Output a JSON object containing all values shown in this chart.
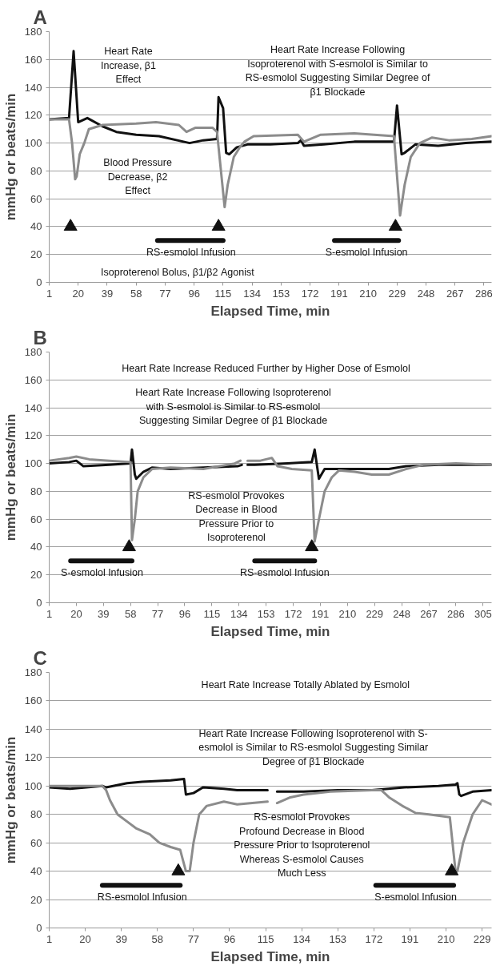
{
  "chart_data": [
    {
      "type": "line",
      "title": "A",
      "xlabel": "Elapsed Time, min",
      "ylabel": "mmHg or beats/min",
      "xlim": [
        1,
        291
      ],
      "ylim": [
        0,
        180
      ],
      "xticks": [
        1,
        20,
        39,
        58,
        77,
        96,
        115,
        134,
        153,
        172,
        191,
        210,
        229,
        248,
        267,
        286
      ],
      "yticks": [
        0,
        20,
        40,
        60,
        80,
        100,
        120,
        140,
        160,
        180
      ],
      "grid": "y",
      "series": [
        {
          "type": "line",
          "color": "#111111",
          "x": [
            1,
            14,
            17,
            20,
            26,
            36,
            45,
            58,
            73,
            89,
            93,
            102,
            111,
            112,
            115,
            117,
            119,
            124,
            131,
            146,
            164,
            166,
            168,
            181,
            201,
            227,
            229,
            232,
            234,
            241,
            256,
            274,
            291
          ],
          "values": [
            117,
            118,
            166,
            115,
            118,
            112,
            108,
            106,
            105,
            101,
            100,
            102,
            103,
            133,
            125,
            93,
            92,
            97,
            99,
            99,
            100,
            102,
            98,
            99,
            101,
            101,
            127,
            92,
            93,
            99,
            98,
            100,
            101
          ]
        },
        {
          "type": "line",
          "color": "#8c8c8c",
          "x": [
            1,
            14,
            16,
            18,
            19,
            21,
            24,
            27,
            36,
            58,
            71,
            86,
            91,
            97,
            108,
            111,
            116,
            118,
            122,
            126,
            129,
            135,
            164,
            168,
            179,
            201,
            227,
            231,
            234,
            238,
            244,
            252,
            263,
            278,
            291
          ],
          "values": [
            117,
            117,
            100,
            74,
            76,
            92,
            100,
            110,
            113,
            114,
            115,
            113,
            108,
            111,
            111,
            108,
            54,
            70,
            90,
            97,
            101,
            105,
            106,
            101,
            106,
            107,
            105,
            48,
            70,
            90,
            100,
            104,
            102,
            103,
            105
          ]
        },
        {
          "type": "scatter",
          "marker": "triangle",
          "color": "#111111",
          "x": [
            15,
            112,
            228
          ],
          "values": [
            40,
            40,
            40
          ]
        },
        {
          "type": "line",
          "color": "#111111",
          "x": [
            72,
            115
          ],
          "values": [
            30,
            30
          ]
        },
        {
          "type": "line",
          "color": "#111111",
          "x": [
            188,
            230
          ],
          "values": [
            30,
            30
          ]
        }
      ],
      "annotations": [
        "Heart Rate\nIncrease, β1\nEffect",
        "Heart Rate Increase Following\nIsoproterenol with S-esmolol is Similar to\nRS-esmolol Suggesting Similar Degree of\nβ1 Blockade",
        "Blood Pressure\nDecrease, β2\nEffect",
        "Isoproterenol Bolus, β1/β2 Agonist",
        {
          "text": "RS-esmolol Infusion",
          "x": 94,
          "y": 30
        },
        {
          "text": "S-esmolol Infusion",
          "x": 209,
          "y": 30
        }
      ]
    },
    {
      "type": "line",
      "title": "B",
      "xlabel": "Elapsed Time, min",
      "ylabel": "mmHg or beats/min",
      "xlim": [
        1,
        311
      ],
      "ylim": [
        0,
        180
      ],
      "xticks": [
        1,
        20,
        39,
        58,
        77,
        96,
        115,
        134,
        153,
        172,
        191,
        210,
        229,
        248,
        267,
        286,
        305
      ],
      "yticks": [
        0,
        20,
        40,
        60,
        80,
        100,
        120,
        140,
        160,
        180
      ],
      "grid": "y",
      "series": [
        {
          "type": "line",
          "color": "#111111",
          "x": [
            1,
            15,
            20,
            25,
            43,
            58,
            59,
            61,
            62,
            67,
            73,
            86,
            109,
            133,
            136,
            138,
            140,
            145,
            168,
            185,
            187,
            190,
            194,
            215,
            239,
            251,
            274,
            311
          ],
          "values": [
            100,
            101,
            102,
            98,
            99,
            100,
            110,
            92,
            89,
            94,
            97,
            96,
            97,
            98,
            99,
            null,
            99,
            99,
            100,
            101,
            110,
            89,
            96,
            96,
            96,
            98,
            99,
            99
          ]
        },
        {
          "type": "line",
          "color": "#8c8c8c",
          "x": [
            1,
            15,
            20,
            29,
            43,
            58,
            59,
            61,
            63,
            67,
            73,
            86,
            109,
            131,
            135,
            138,
            140,
            149,
            157,
            161,
            171,
            185,
            187,
            190,
            194,
            199,
            204,
            215,
            227,
            239,
            251,
            263,
            286,
            311
          ],
          "values": [
            102,
            104,
            105,
            103,
            102,
            101,
            45,
            60,
            80,
            90,
            96,
            97,
            96,
            100,
            102,
            null,
            102,
            102,
            104,
            98,
            96,
            95,
            44,
            60,
            80,
            90,
            95,
            94,
            92,
            92,
            96,
            99,
            100,
            99
          ]
        },
        {
          "type": "scatter",
          "marker": "triangle",
          "color": "#111111",
          "x": [
            57,
            185
          ],
          "values": [
            40,
            40
          ]
        },
        {
          "type": "line",
          "color": "#111111",
          "x": [
            16,
            59
          ],
          "values": [
            30,
            30
          ]
        },
        {
          "type": "line",
          "color": "#111111",
          "x": [
            145,
            187
          ],
          "values": [
            30,
            30
          ]
        }
      ],
      "annotations": [
        "Heart Rate Increase Reduced Further by Higher Dose of Esmolol",
        "Heart Rate Increase Following Isoproterenol\nwith S-esmolol is Similar to RS-esmolol\nSuggesting Similar Degree of β1 Blockade",
        "RS-esmolol Provokes\nDecrease in Blood\nPressure Prior to\nIsoproterenol",
        {
          "text": "S-esmolol Infusion",
          "x": 38,
          "y": 30
        },
        {
          "text": "RS-esmolol Infusion",
          "x": 166,
          "y": 30
        }
      ]
    },
    {
      "type": "line",
      "title": "C",
      "xlabel": "Elapsed Time, min",
      "ylabel": "mmHg or beats/min",
      "xlim": [
        1,
        234
      ],
      "ylim": [
        0,
        180
      ],
      "xticks": [
        1,
        20,
        39,
        58,
        77,
        96,
        115,
        134,
        153,
        172,
        191,
        210,
        229
      ],
      "yticks": [
        0,
        20,
        40,
        60,
        80,
        100,
        120,
        140,
        160,
        180
      ],
      "grid": "y",
      "series": [
        {
          "type": "line",
          "color": "#111111",
          "x": [
            1,
            12,
            29,
            31,
            42,
            50,
            65,
            72,
            73,
            77,
            82,
            93,
            100,
            116,
            118,
            121,
            135,
            153,
            171,
            188,
            206,
            215,
            216,
            217,
            218,
            224,
            234
          ],
          "values": [
            99,
            98,
            100,
            99,
            102,
            103,
            104,
            105,
            94,
            95,
            99,
            98,
            97,
            97,
            null,
            96,
            96,
            97,
            97,
            99,
            100,
            101,
            102,
            94,
            93,
            96,
            97
          ]
        },
        {
          "type": "line",
          "color": "#8c8c8c",
          "x": [
            1,
            29,
            31,
            33,
            37,
            42,
            47,
            54,
            59,
            65,
            70,
            73,
            75,
            77,
            80,
            84,
            93,
            100,
            116,
            118,
            121,
            128,
            135,
            149,
            171,
            176,
            180,
            187,
            194,
            201,
            212,
            215,
            216,
            219,
            224,
            229,
            234
          ],
          "values": [
            100,
            100,
            97,
            90,
            80,
            75,
            70,
            66,
            60,
            57,
            55,
            40,
            40,
            60,
            80,
            86,
            89,
            87,
            89,
            null,
            88,
            92,
            94,
            96,
            97,
            97,
            92,
            86,
            81,
            80,
            78,
            40,
            40,
            60,
            80,
            90,
            87
          ]
        },
        {
          "type": "scatter",
          "marker": "triangle",
          "color": "#111111",
          "x": [
            69,
            213
          ],
          "values": [
            40,
            40
          ]
        },
        {
          "type": "line",
          "color": "#111111",
          "x": [
            29,
            70
          ],
          "values": [
            30,
            30
          ]
        },
        {
          "type": "line",
          "color": "#111111",
          "x": [
            173,
            214
          ],
          "values": [
            30,
            30
          ]
        }
      ],
      "annotations": [
        "Heart Rate Increase Totally Ablated by Esmolol",
        "Heart Rate Increase Following Isoproterenol with S-\nesmolol is Similar to RS-esmolol Suggesting Similar\nDegree of β1 Blockade",
        "RS-esmolol Provokes\nProfound Decrease in Blood\nPressure Prior to Isoproterenol\nWhereas S-esmolol Causes\nMuch Less",
        {
          "text": "RS-esmolol Infusion",
          "x": 50,
          "y": 30
        },
        {
          "text": "S-esmolol Infusion",
          "x": 194,
          "y": 30
        }
      ]
    }
  ]
}
